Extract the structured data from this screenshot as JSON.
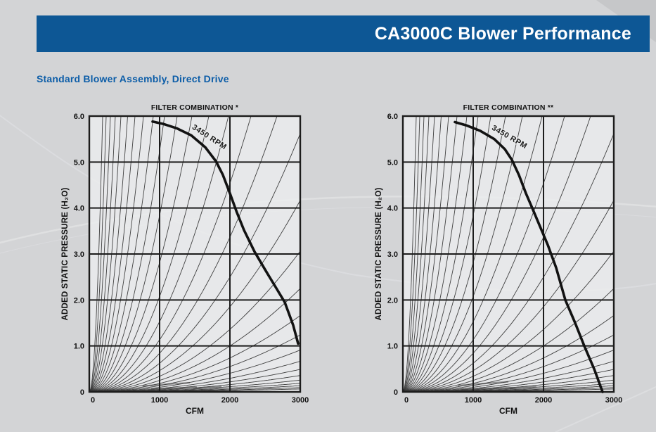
{
  "header": {
    "title": "CA3000C Blower Performance"
  },
  "subtitle": "Standard Blower Assembly, Direct Drive",
  "colors": {
    "page_bg": "#d3d4d6",
    "bar_blue": "#0d5795",
    "subtitle_blue": "#0c5da8",
    "grid": "#1c1c1c",
    "fan_curve": "#121212",
    "thin_curve": "#2e2e2e",
    "plot_bg": "#ecedee",
    "swoosh_light": "#dcdde0",
    "corner_dark": "#c6c7c9"
  },
  "chart_data": [
    {
      "type": "line",
      "title": "FILTER COMBINATION *",
      "xlabel": "CFM",
      "ylabel": "ADDED STATIC PRESSURE (H₂O)",
      "xlim": [
        0,
        3000
      ],
      "ylim": [
        0,
        6
      ],
      "x_ticks": [
        0,
        1000,
        2000,
        3000
      ],
      "x_tick_labels": [
        "0",
        "1000",
        "2000",
        "3000"
      ],
      "y_ticks": [
        6,
        5,
        4,
        3,
        2,
        1,
        0
      ],
      "y_tick_labels": [
        "6.0",
        "5.0",
        "4.0",
        "3.0",
        "2.0",
        "1.0",
        "0"
      ],
      "grid": "major on, 1.0 H2O horizontal / 1000 CFM vertical",
      "series": [
        {
          "name": "3450 RPM",
          "points": [
            [
              900,
              5.88
            ],
            [
              1050,
              5.83
            ],
            [
              1250,
              5.73
            ],
            [
              1450,
              5.58
            ],
            [
              1650,
              5.32
            ],
            [
              1800,
              5.02
            ],
            [
              1900,
              4.72
            ],
            [
              2000,
              4.32
            ],
            [
              2100,
              3.9
            ],
            [
              2200,
              3.52
            ],
            [
              2350,
              3.05
            ],
            [
              2500,
              2.66
            ],
            [
              2650,
              2.28
            ],
            [
              2780,
              1.95
            ],
            [
              2900,
              1.45
            ],
            [
              2970,
              1.05
            ]
          ]
        }
      ],
      "system_resistance_curves": {
        "formula": "P = 6 * (Q / c)^2",
        "c_values": [
          190,
          240,
          300,
          370,
          450,
          545,
          650,
          770,
          910,
          1070,
          1250,
          1460,
          1700,
          1980,
          2300,
          2670,
          3100,
          3600,
          4200,
          4900,
          5700,
          6600,
          7700,
          9000,
          10500,
          12300,
          14500,
          17000,
          20000,
          24000,
          29000
        ]
      },
      "smudges": [
        [
          760,
          0.13,
          1430,
          0.2
        ],
        [
          880,
          0.06,
          1530,
          0.1
        ],
        [
          1480,
          0.07,
          1880,
          0.12
        ]
      ],
      "annotation": {
        "text": "3450 RPM",
        "q": 1690,
        "p": 5.5,
        "angle": 33
      }
    },
    {
      "type": "line",
      "title": "FILTER COMBINATION **",
      "xlabel": "CFM",
      "ylabel": "ADDED STATIC PRESSURE (H₂O)",
      "xlim": [
        0,
        3000
      ],
      "ylim": [
        0,
        6
      ],
      "x_ticks": [
        0,
        1000,
        2000,
        3000
      ],
      "x_tick_labels": [
        "0",
        "1000",
        "2000",
        "3000"
      ],
      "y_ticks": [
        6,
        5,
        4,
        3,
        2,
        1,
        0
      ],
      "y_tick_labels": [
        "6.0",
        "5.0",
        "4.0",
        "3.0",
        "2.0",
        "1.0",
        "0"
      ],
      "grid": "major on, 1.0 H2O horizontal / 1000 CFM vertical",
      "series": [
        {
          "name": "3450 RPM",
          "points": [
            [
              740,
              5.87
            ],
            [
              900,
              5.8
            ],
            [
              1100,
              5.68
            ],
            [
              1300,
              5.5
            ],
            [
              1450,
              5.28
            ],
            [
              1550,
              5.05
            ],
            [
              1650,
              4.72
            ],
            [
              1750,
              4.32
            ],
            [
              1840,
              4.0
            ],
            [
              1950,
              3.6
            ],
            [
              2060,
              3.2
            ],
            [
              2180,
              2.7
            ],
            [
              2310,
              2.0
            ],
            [
              2450,
              1.5
            ],
            [
              2580,
              1.0
            ],
            [
              2720,
              0.5
            ],
            [
              2840,
              0.0
            ]
          ]
        }
      ],
      "system_resistance_curves": {
        "formula": "P = 6 * (Q / c)^2",
        "c_values": [
          190,
          240,
          300,
          370,
          450,
          545,
          650,
          770,
          910,
          1070,
          1250,
          1460,
          1700,
          1980,
          2300,
          2670,
          3100,
          3600,
          4200,
          4900,
          5700,
          6600,
          7700,
          9000,
          10500,
          12300,
          14500,
          17000,
          20000,
          24000,
          29000
        ]
      },
      "smudges": [
        [
          780,
          0.14,
          1500,
          0.22
        ],
        [
          820,
          0.05,
          1560,
          0.09
        ],
        [
          1520,
          0.07,
          1900,
          0.12
        ]
      ],
      "annotation": {
        "text": "3450 RPM",
        "q": 1500,
        "p": 5.5,
        "angle": 30
      }
    }
  ]
}
